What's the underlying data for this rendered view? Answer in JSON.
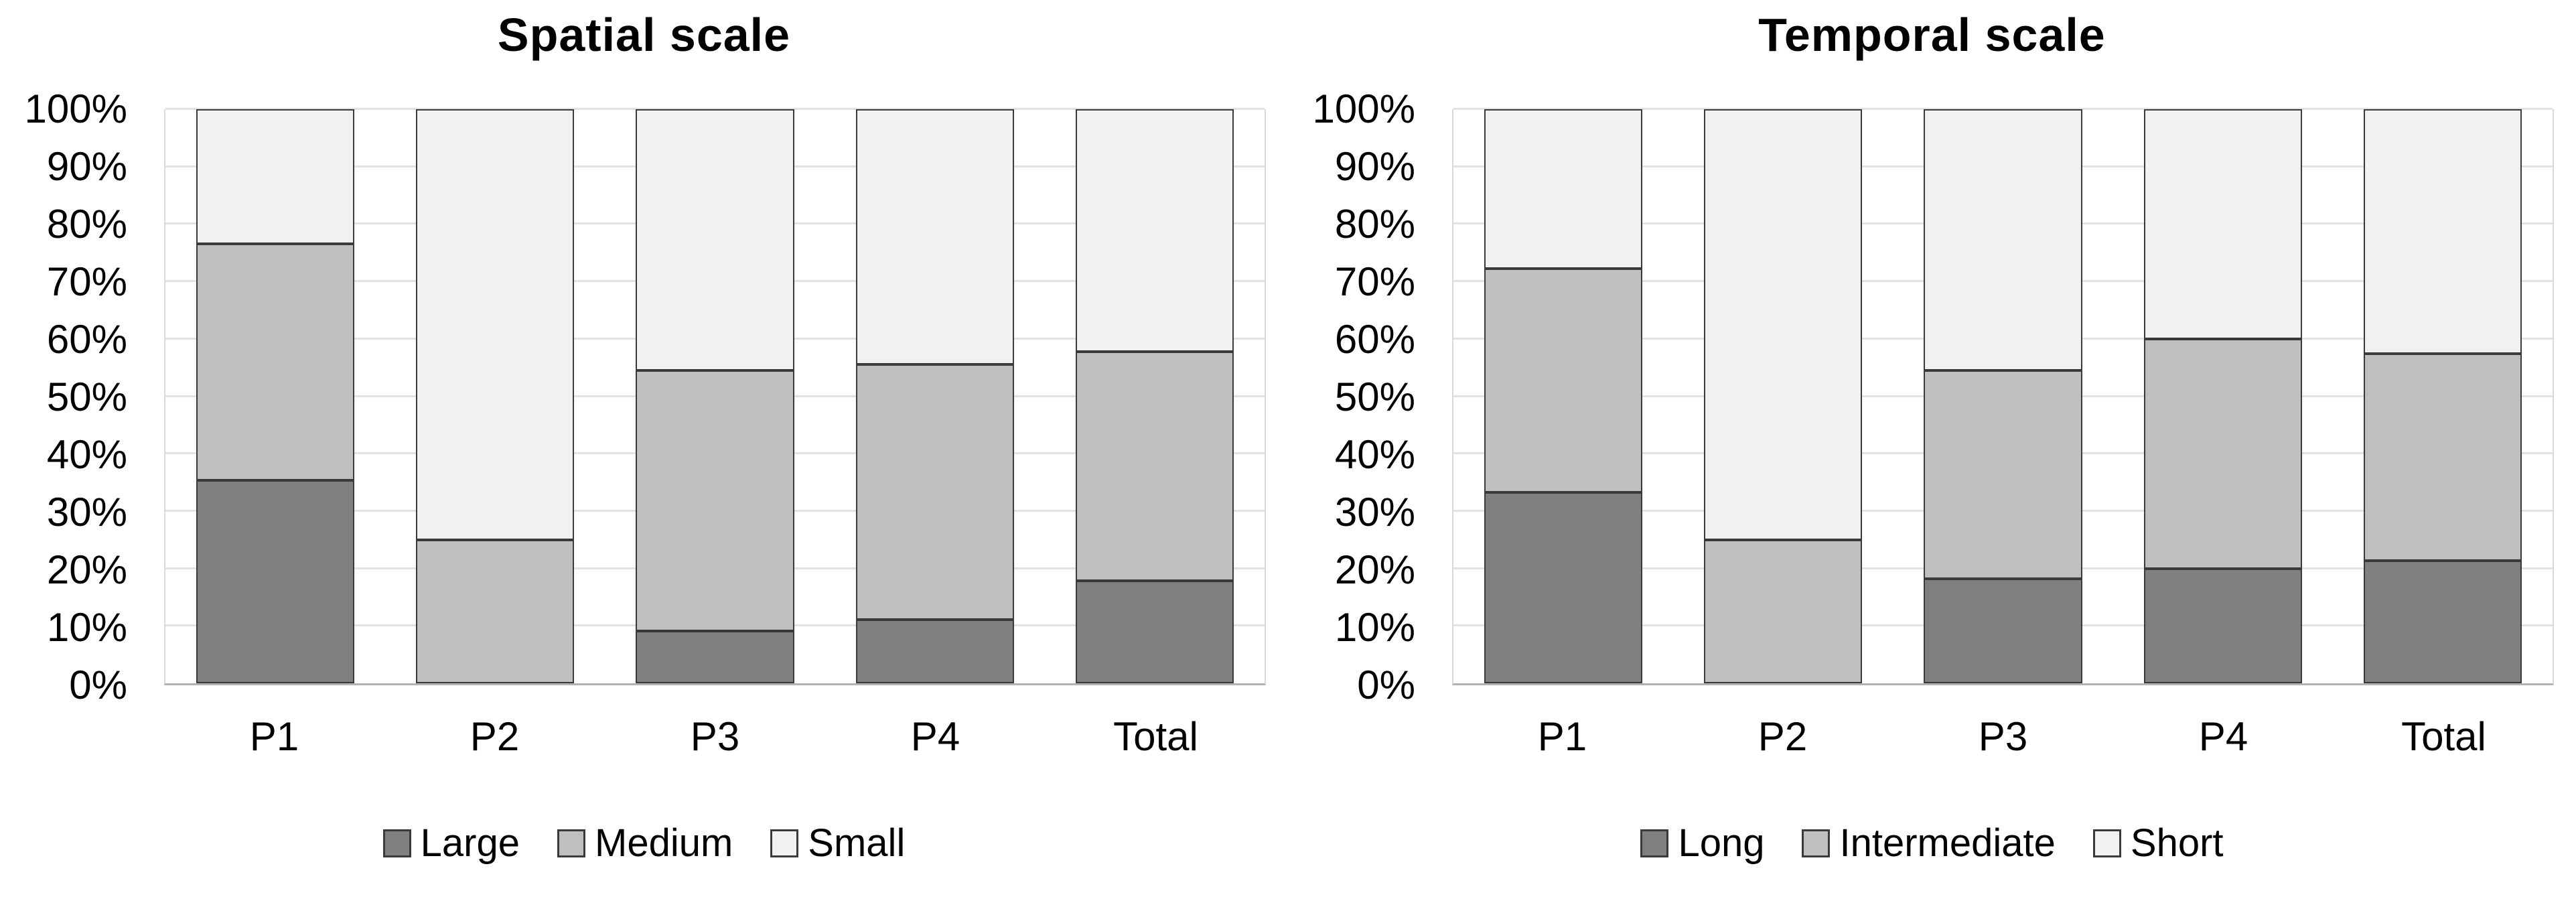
{
  "chart_data": [
    {
      "type": "bar",
      "stacked": true,
      "percent_stacked": true,
      "title": "Spatial scale",
      "categories": [
        "P1",
        "P2",
        "P3",
        "P4",
        "Total"
      ],
      "series": [
        {
          "name": "Large",
          "color": "#7f7f7f",
          "values": [
            35.3,
            0.0,
            9.1,
            11.1,
            17.8
          ]
        },
        {
          "name": "Medium",
          "color": "#bfbfbf",
          "values": [
            41.2,
            25.0,
            45.4,
            44.5,
            40.0
          ]
        },
        {
          "name": "Small",
          "color": "#f1f1f1",
          "values": [
            23.5,
            75.0,
            45.5,
            44.4,
            42.2
          ]
        }
      ],
      "xlabel": "",
      "ylabel": "",
      "ylim": [
        0,
        100
      ],
      "y_ticks": [
        "0%",
        "10%",
        "20%",
        "30%",
        "40%",
        "50%",
        "60%",
        "70%",
        "80%",
        "90%",
        "100%"
      ],
      "grid": true,
      "legend_position": "bottom",
      "bar_outline_color": "#3a3a3a",
      "gridline_color": "#e2e2e2"
    },
    {
      "type": "bar",
      "stacked": true,
      "percent_stacked": true,
      "title": "Temporal scale",
      "categories": [
        "P1",
        "P2",
        "P3",
        "P4",
        "Total"
      ],
      "series": [
        {
          "name": "Long",
          "color": "#7f7f7f",
          "values": [
            33.3,
            0.0,
            18.2,
            20.0,
            21.3
          ]
        },
        {
          "name": "Intermediate",
          "color": "#bfbfbf",
          "values": [
            38.9,
            25.0,
            36.3,
            40.0,
            36.1
          ]
        },
        {
          "name": "Short",
          "color": "#f1f1f1",
          "values": [
            27.8,
            75.0,
            45.5,
            40.0,
            42.6
          ]
        }
      ],
      "xlabel": "",
      "ylabel": "",
      "ylim": [
        0,
        100
      ],
      "y_ticks": [
        "0%",
        "10%",
        "20%",
        "30%",
        "40%",
        "50%",
        "60%",
        "70%",
        "80%",
        "90%",
        "100%"
      ],
      "grid": true,
      "legend_position": "bottom",
      "bar_outline_color": "#3a3a3a",
      "gridline_color": "#e2e2e2"
    }
  ]
}
